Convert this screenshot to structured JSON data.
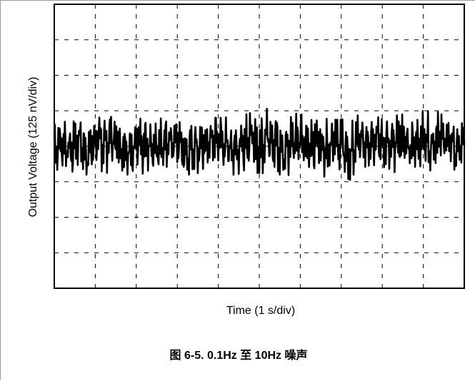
{
  "chart_data": {
    "type": "line",
    "title": "",
    "xlabel": "Time (1 s/div)",
    "ylabel": "Output Voltage (125 nV/div)",
    "xlim": [
      0,
      10
    ],
    "ylim": [
      -4,
      4
    ],
    "x_divisions": 10,
    "y_divisions": 8,
    "grid": true,
    "grid_style": "dashed",
    "series": [
      {
        "color": "#000000",
        "x": [
          0,
          0.2,
          0.4,
          0.6,
          0.8,
          1,
          1.2,
          1.4,
          1.6,
          1.8,
          2,
          2.2,
          2.4,
          2.6,
          2.8,
          3,
          3.2,
          3.4,
          3.6,
          3.8,
          4,
          4.2,
          4.4,
          4.6,
          4.8,
          5,
          5.2,
          5.4,
          5.6,
          5.8,
          6,
          6.2,
          6.4,
          6.6,
          6.8,
          7,
          7.2,
          7.4,
          7.6,
          7.8,
          8,
          8.2,
          8.4,
          8.6,
          8.8,
          9,
          9.2,
          9.4,
          9.6,
          9.8,
          10
        ],
        "y": [
          -0.1,
          0.3,
          -0.4,
          0.6,
          -0.7,
          0.5,
          0.4,
          0.6,
          0,
          -0.3,
          0.3,
          0.5,
          -0.5,
          -0.4,
          0.5,
          0.6,
          -0.6,
          0.2,
          -0.3,
          0.4,
          0.7,
          0,
          -0.3,
          0.4,
          0.7,
          -0.3,
          1.1,
          0.3,
          -0.6,
          0.7,
          0.5,
          0,
          0.5,
          -0.2,
          0.5,
          0.4,
          -1.1,
          0.3,
          0.5,
          0.7,
          0.4,
          -0.2,
          0.6,
          0.1,
          0.4,
          0.7,
          -0.1,
          0.7,
          0.5,
          -0.4,
          0.5
        ],
        "envelope": {
          "x": [
            0,
            1,
            2,
            3,
            4,
            4.6,
            5,
            5.5,
            6,
            6.5,
            6.8,
            7,
            7.5,
            8,
            8.5,
            9,
            9.5,
            10
          ],
          "max": [
            0.8,
            0.8,
            0.9,
            0.85,
            0.8,
            0.85,
            1.1,
            1,
            0.9,
            0.8,
            0.75,
            0.75,
            0.9,
            0.8,
            0.9,
            1,
            1,
            1
          ],
          "min": [
            -0.8,
            -0.8,
            -0.8,
            -0.8,
            -0.8,
            -0.8,
            -0.75,
            -0.85,
            -0.8,
            -0.8,
            -1,
            -1.1,
            -0.75,
            -0.7,
            -0.75,
            -0.8,
            -0.8,
            -0.7
          ]
        }
      }
    ]
  },
  "caption": "图 6-5. 0.1Hz 至 10Hz 噪声"
}
